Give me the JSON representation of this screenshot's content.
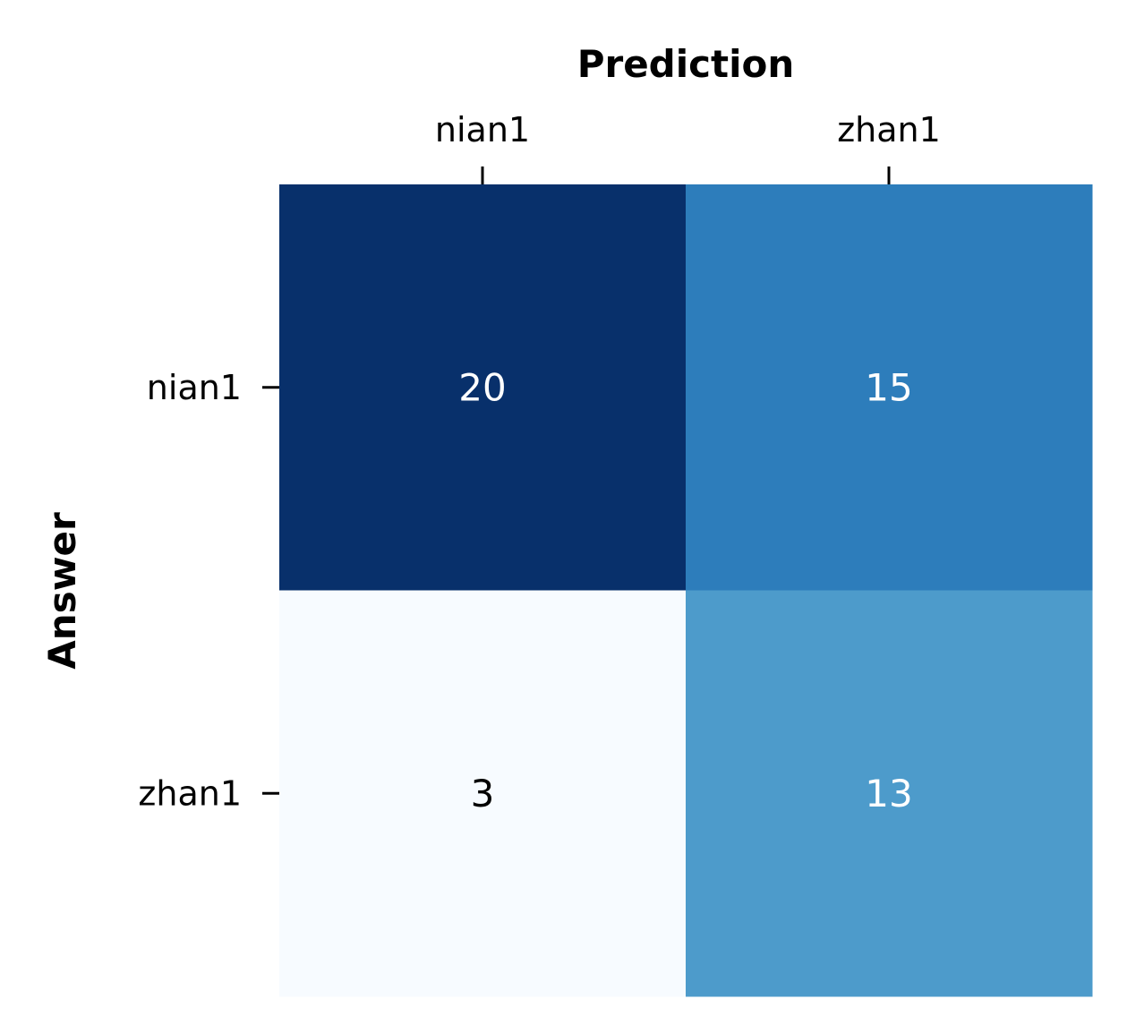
{
  "chart_data": {
    "type": "heatmap",
    "title": "",
    "xlabel": "Prediction",
    "ylabel": "Answer",
    "x_categories": [
      "nian1",
      "zhan1"
    ],
    "y_categories": [
      "nian1",
      "zhan1"
    ],
    "values": [
      [
        20,
        15
      ],
      [
        3,
        13
      ]
    ],
    "colormap": "Blues",
    "colorbar": false,
    "x_axis_position": "top",
    "cell_colors": [
      [
        "#08306b",
        "#2d7dbb"
      ],
      [
        "#f7fbff",
        "#4d9bcb"
      ]
    ],
    "annotation_text_colors": [
      [
        "#ffffff",
        "#ffffff"
      ],
      [
        "#000000",
        "#ffffff"
      ]
    ],
    "axis_text_color": "#000000",
    "tick_color": "#000000"
  }
}
